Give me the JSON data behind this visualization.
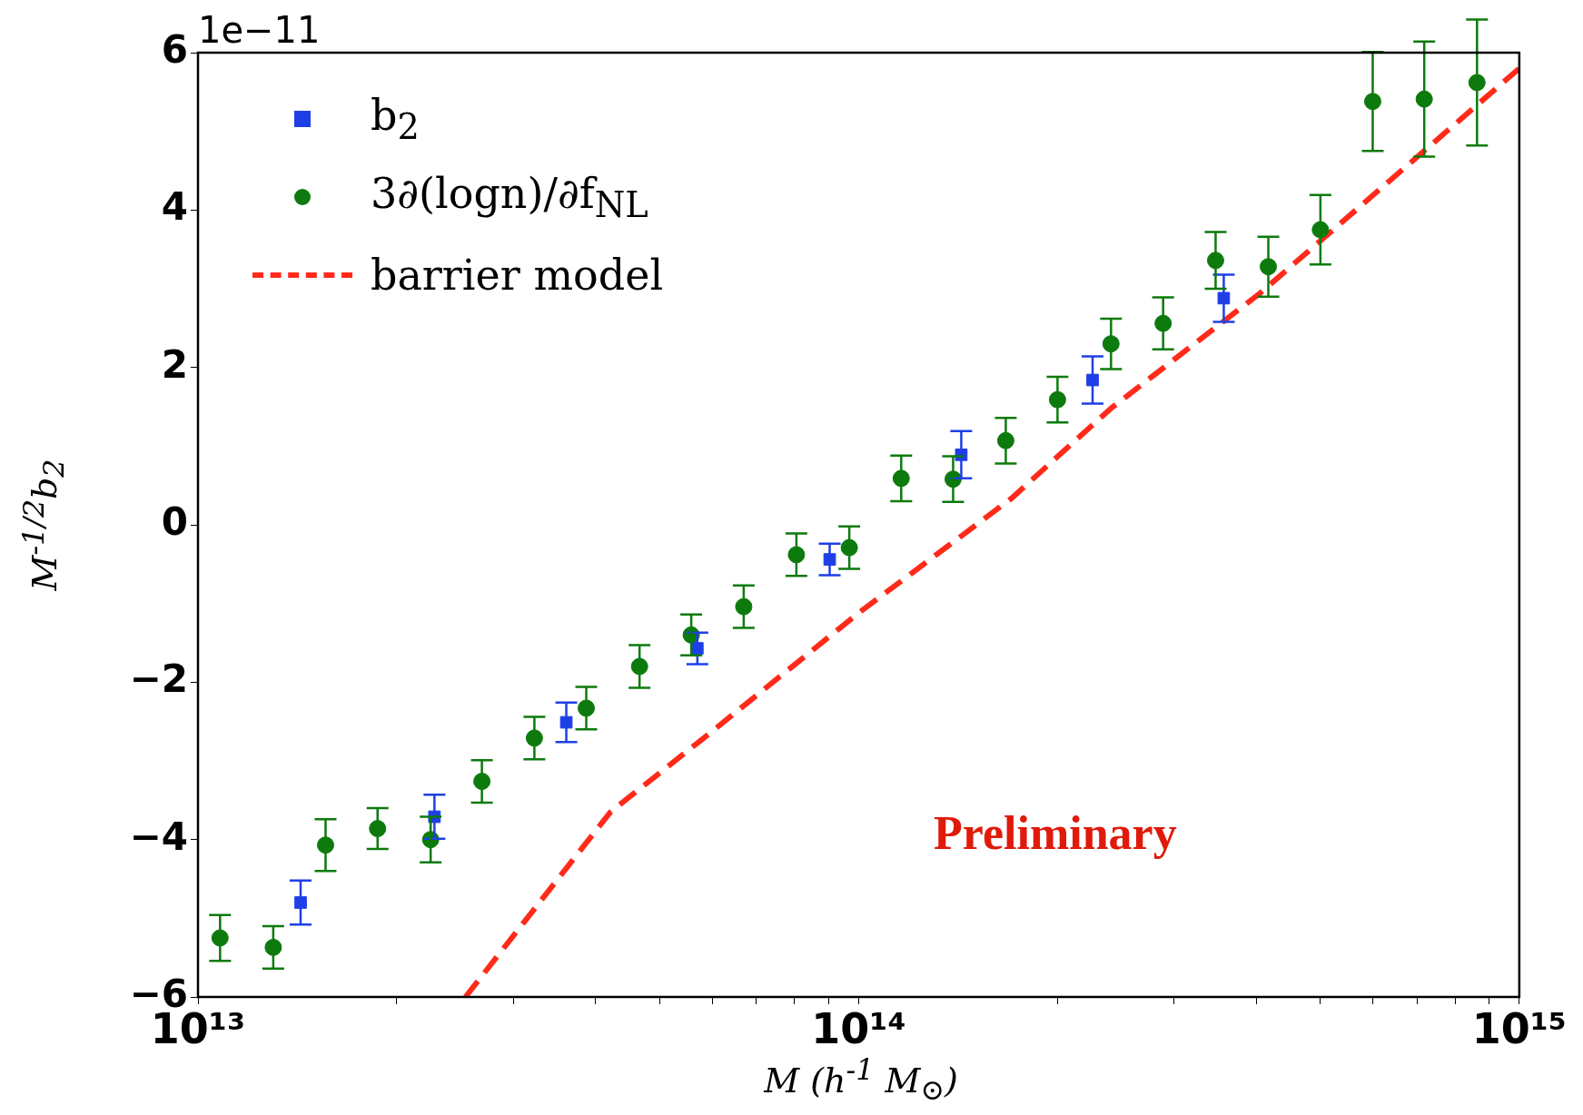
{
  "chart_data": {
    "type": "scatter",
    "xlabel": "M (h$^{-1}$ M$_{⊙}$)",
    "ylabel": "M$^{-1/2}$b$_{2}$",
    "annotations": [
      "1e−11",
      "Preliminary"
    ],
    "log": "x",
    "grid": false,
    "legend": "top left",
    "xlim": [
      10000000000000.0,
      1000000000000000.0
    ],
    "ylim": [
      -6,
      6
    ],
    "xticks": [
      {
        "value": 10000000000000.0,
        "label": "10¹³"
      },
      {
        "value": 20000000000000.0,
        "label": null
      },
      {
        "value": 30000000000000.0,
        "label": null
      },
      {
        "value": 40000000000000.0,
        "label": null
      },
      {
        "value": 50000000000000.0,
        "label": null
      },
      {
        "value": 60000000000000.0,
        "label": null
      },
      {
        "value": 70000000000000.0,
        "label": null
      },
      {
        "value": 80000000000000.0,
        "label": null
      },
      {
        "value": 90000000000000.0,
        "label": null
      },
      {
        "value": 100000000000000.0,
        "label": "10¹⁴"
      },
      {
        "value": 200000000000000.0,
        "label": null
      },
      {
        "value": 300000000000000.0,
        "label": null
      },
      {
        "value": 400000000000000.0,
        "label": null
      },
      {
        "value": 500000000000000.0,
        "label": null
      },
      {
        "value": 600000000000000.0,
        "label": null
      },
      {
        "value": 700000000000000.0,
        "label": null
      },
      {
        "value": 800000000000000.0,
        "label": null
      },
      {
        "value": 900000000000000.0,
        "label": null
      },
      {
        "value": 1000000000000000.0,
        "label": "10¹⁵"
      }
    ],
    "yticks": [
      {
        "value": -6,
        "label": "−6"
      },
      {
        "value": -4,
        "label": "−4"
      },
      {
        "value": -2,
        "label": "−2"
      },
      0,
      2,
      4,
      6
    ],
    "series": [
      {
        "name": "b$_{2}$",
        "type": "scatter",
        "marker": "square",
        "color": "#1f3fe6",
        "x": [
          14300000000000.0,
          22800000000000.0,
          36100000000000.0,
          57000000000000.0,
          90400000000000.0,
          143000000000000.0,
          226000000000000.0,
          357000000000000.0
        ],
        "values": [
          -4.8,
          -3.71,
          -2.51,
          -1.57,
          -0.44,
          0.89,
          1.84,
          2.88
        ],
        "errors": [
          0.28,
          0.28,
          0.25,
          0.2,
          0.2,
          0.3,
          0.3,
          0.3
        ]
      },
      {
        "name": "3∂(logn)/∂f$_{NL}$",
        "type": "scatter",
        "marker": "circle",
        "color": "#0d7a0d",
        "x": [
          10800000000000.0,
          13000000000000.0,
          15600000000000.0,
          18700000000000.0,
          22500000000000.0,
          26900000000000.0,
          32300000000000.0,
          38700000000000.0,
          46600000000000.0,
          55800000000000.0,
          67000000000000.0,
          80500000000000.0,
          96800000000000.0,
          116000000000000.0,
          139000000000000.0,
          167000000000000.0,
          200000000000000.0,
          241000000000000.0,
          289000000000000.0,
          347000000000000.0,
          417000000000000.0,
          500000000000000.0,
          600000000000000.0,
          718000000000000.0,
          863000000000000.0
        ],
        "values": [
          -5.25,
          -5.37,
          -4.07,
          -3.86,
          -4.0,
          -3.26,
          -2.71,
          -2.33,
          -1.8,
          -1.4,
          -1.04,
          -0.38,
          -0.29,
          0.59,
          0.58,
          1.07,
          1.59,
          2.3,
          2.56,
          3.36,
          3.28,
          3.75,
          5.38,
          5.41,
          5.62
        ],
        "errors": [
          0.29,
          0.27,
          0.33,
          0.26,
          0.29,
          0.27,
          0.27,
          0.27,
          0.27,
          0.26,
          0.27,
          0.27,
          0.27,
          0.29,
          0.29,
          0.29,
          0.29,
          0.32,
          0.33,
          0.36,
          0.38,
          0.44,
          0.63,
          0.73,
          0.8
        ]
      },
      {
        "name": "barrier model",
        "type": "line",
        "marker": "none",
        "line_style": "dashed",
        "color": "#ff2a1a",
        "x": [
          25400000000000.0,
          42100000000000.0,
          59700000000000.0,
          100000000000000.0,
          170000000000000.0,
          241000000000000.0,
          406000000000000.0,
          1000000000000000.0
        ],
        "values": [
          -6,
          -3.65,
          -2.64,
          -1.12,
          0.33,
          1.48,
          2.95,
          5.8
        ]
      }
    ]
  }
}
